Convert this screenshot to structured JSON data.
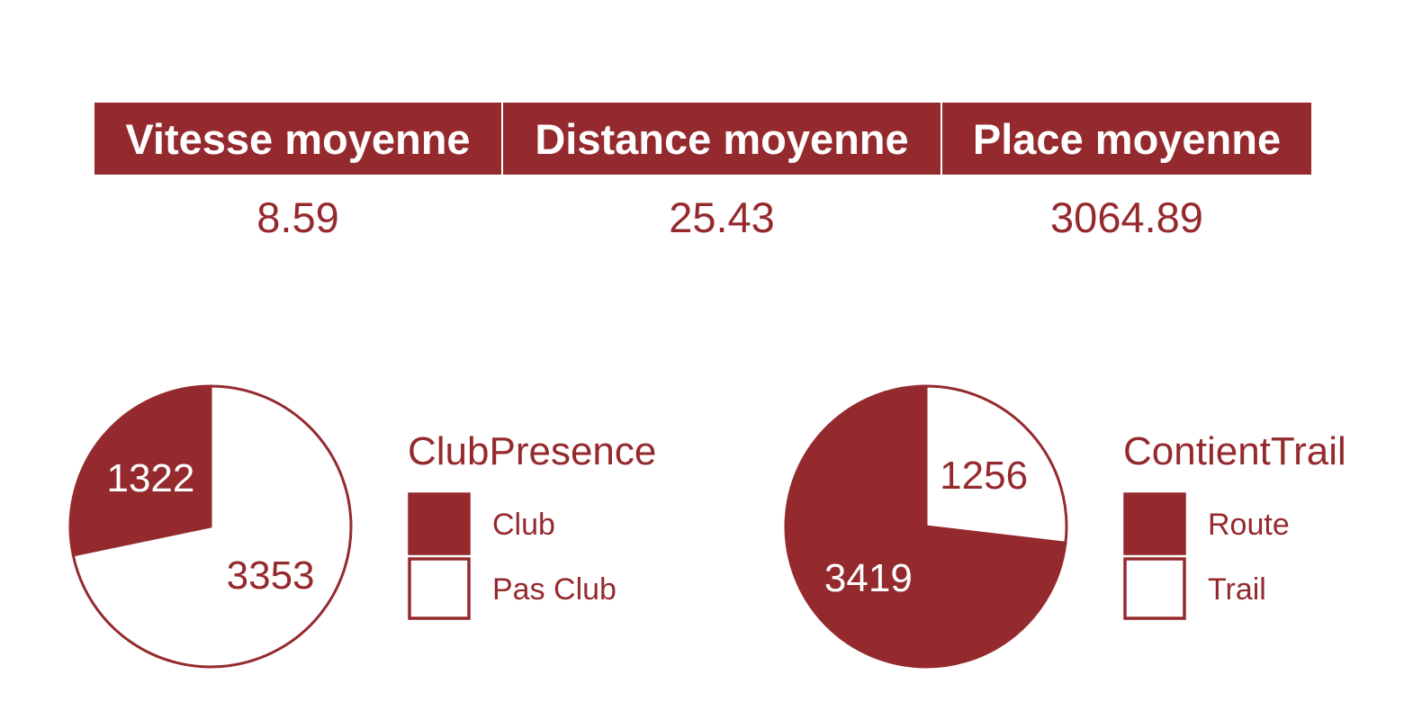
{
  "summary": {
    "headers": [
      "Vitesse moyenne",
      "Distance moyenne",
      "Place moyenne"
    ],
    "values": [
      "8.59",
      "25.43",
      "3064.89"
    ]
  },
  "colors": {
    "accent": "#952a2e",
    "fill_light": "#ffffff"
  },
  "chart_data": [
    {
      "type": "pie",
      "legend_title": "ClubPresence",
      "categories": [
        "Club",
        "Pas Club"
      ],
      "values": [
        1322,
        3353
      ],
      "colors": [
        "#952a2e",
        "#ffffff"
      ],
      "legend_position": "right"
    },
    {
      "type": "pie",
      "legend_title": "ContientTrail",
      "categories": [
        "Route",
        "Trail"
      ],
      "values": [
        3419,
        1256
      ],
      "colors": [
        "#952a2e",
        "#ffffff"
      ],
      "legend_position": "right"
    }
  ]
}
